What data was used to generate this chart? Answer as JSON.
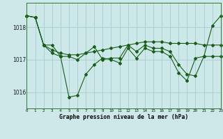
{
  "x": [
    0,
    1,
    2,
    3,
    4,
    5,
    6,
    7,
    8,
    9,
    10,
    11,
    12,
    13,
    14,
    15,
    16,
    17,
    18,
    19,
    20,
    21,
    22,
    23
  ],
  "line1": [
    1018.35,
    1018.3,
    1017.45,
    1017.45,
    1017.1,
    1015.85,
    1015.9,
    1016.55,
    1016.85,
    1017.05,
    1017.0,
    1016.9,
    1017.35,
    1017.05,
    1017.35,
    1017.25,
    1017.25,
    1017.1,
    1016.6,
    1016.35,
    1017.05,
    1017.1,
    1018.05,
    1018.35
  ],
  "line2": [
    1018.35,
    1018.3,
    1017.45,
    1017.3,
    1017.2,
    1017.15,
    1017.15,
    1017.2,
    1017.25,
    1017.3,
    1017.35,
    1017.4,
    1017.45,
    1017.5,
    1017.55,
    1017.55,
    1017.55,
    1017.5,
    1017.5,
    1017.5,
    1017.5,
    1017.45,
    1017.45,
    1017.45
  ],
  "line3": [
    1018.35,
    1018.3,
    1017.45,
    1017.2,
    1017.1,
    1017.1,
    1017.0,
    1017.2,
    1017.4,
    1017.0,
    1017.05,
    1017.05,
    1017.45,
    1017.25,
    1017.45,
    1017.35,
    1017.35,
    1017.25,
    1016.85,
    1016.55,
    1016.5,
    1017.1,
    1017.1,
    1017.1
  ],
  "bg_color": "#cce8e8",
  "grid_color": "#aacccc",
  "line_color": "#1a5c1a",
  "title": "Graphe pression niveau de la mer (hPa)",
  "yticks": [
    1016,
    1017,
    1018
  ],
  "xlim": [
    0,
    23
  ],
  "ylim": [
    1015.5,
    1018.75
  ]
}
